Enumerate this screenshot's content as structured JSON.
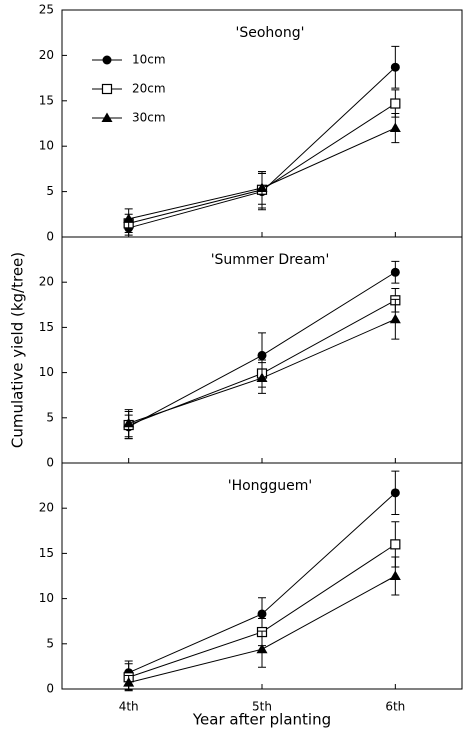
{
  "ylabel": "Cumulative yield (kg/tree)",
  "xlabel": "Year after planting",
  "chart_data": [
    {
      "type": "line",
      "title": "'Seohong'",
      "categories": [
        null,
        null,
        null
      ],
      "ylim": [
        0,
        25
      ],
      "yticks": [
        0,
        5,
        10,
        15,
        20,
        25
      ],
      "legend": "upper left",
      "series": [
        {
          "name": "10cm",
          "marker": "circle",
          "color": "#000000",
          "values": [
            1.0,
            5.0,
            18.7
          ],
          "errors": [
            0.8,
            2.0,
            2.3
          ]
        },
        {
          "name": "20cm",
          "marker": "square",
          "color": "#000000",
          "values": [
            1.5,
            5.2,
            14.7
          ],
          "errors": [
            1.0,
            2.0,
            1.5
          ]
        },
        {
          "name": "30cm",
          "marker": "triangle",
          "color": "#000000",
          "values": [
            2.0,
            5.4,
            12.0
          ],
          "errors": [
            1.1,
            1.8,
            1.6
          ]
        }
      ]
    },
    {
      "type": "line",
      "title": "'Summer Dream'",
      "categories": [
        null,
        null,
        null
      ],
      "ylim": [
        0,
        25
      ],
      "yticks": [
        0,
        5,
        10,
        15,
        20
      ],
      "series": [
        {
          "marker": "circle",
          "color": "#000000",
          "values": [
            4.0,
            11.9,
            21.1
          ],
          "errors": [
            1.3,
            2.5,
            1.2
          ]
        },
        {
          "marker": "square",
          "color": "#000000",
          "values": [
            4.2,
            9.9,
            18.0
          ],
          "errors": [
            1.5,
            1.5,
            1.3
          ]
        },
        {
          "marker": "triangle",
          "color": "#000000",
          "values": [
            4.4,
            9.4,
            15.9
          ],
          "errors": [
            1.5,
            1.7,
            2.2
          ]
        }
      ]
    },
    {
      "type": "line",
      "title": "'Hongguem'",
      "categories": [
        "4th",
        "5th",
        "6th"
      ],
      "ylim": [
        0,
        25
      ],
      "yticks": [
        0,
        5,
        10,
        15,
        20
      ],
      "series": [
        {
          "marker": "circle",
          "color": "#000000",
          "values": [
            1.8,
            8.3,
            21.7
          ],
          "errors": [
            1.3,
            1.8,
            2.4
          ]
        },
        {
          "marker": "square",
          "color": "#000000",
          "values": [
            1.3,
            6.3,
            16.0
          ],
          "errors": [
            1.5,
            1.5,
            2.5
          ]
        },
        {
          "marker": "triangle",
          "color": "#000000",
          "values": [
            0.7,
            4.4,
            12.5
          ],
          "errors": [
            0.8,
            2.0,
            2.1
          ]
        }
      ]
    }
  ]
}
